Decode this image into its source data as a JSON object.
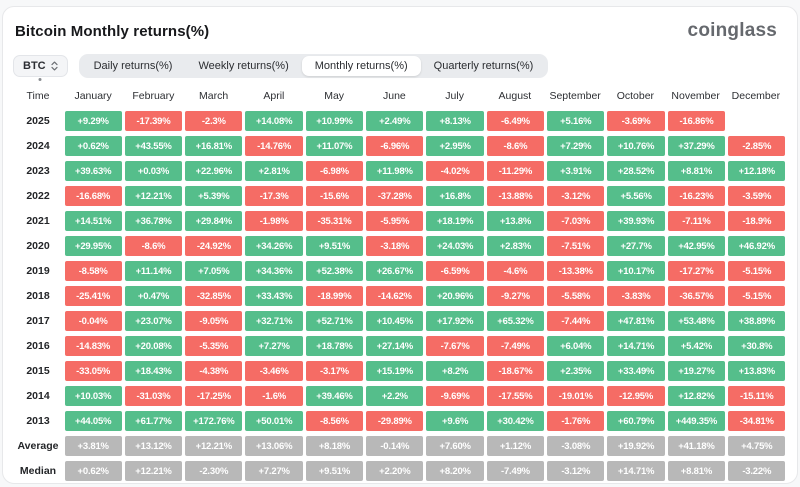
{
  "header": {
    "title": "Bitcoin Monthly returns(%)",
    "brand": "coinglass"
  },
  "controls": {
    "symbol": "BTC",
    "symbol_sort_icon": "chevron-up-down-icon",
    "tabs": [
      {
        "label": "Daily returns(%)",
        "active": false
      },
      {
        "label": "Weekly returns(%)",
        "active": false
      },
      {
        "label": "Monthly returns(%)",
        "active": true
      },
      {
        "label": "Quarterly returns(%)",
        "active": false
      }
    ]
  },
  "colors": {
    "positive": "#55be8b",
    "negative": "#f56c65",
    "summary": "#b8b8b8"
  },
  "table": {
    "time_header": "Time",
    "months": [
      "January",
      "February",
      "March",
      "April",
      "May",
      "June",
      "July",
      "August",
      "September",
      "October",
      "November",
      "December"
    ],
    "rows": [
      {
        "label": "2025",
        "type": "year",
        "cells": [
          "+9.29%",
          "-17.39%",
          "-2.3%",
          "+14.08%",
          "+10.99%",
          "+2.49%",
          "+8.13%",
          "-6.49%",
          "+5.16%",
          "-3.69%",
          "-16.86%",
          null
        ]
      },
      {
        "label": "2024",
        "type": "year",
        "cells": [
          "+0.62%",
          "+43.55%",
          "+16.81%",
          "-14.76%",
          "+11.07%",
          "-6.96%",
          "+2.95%",
          "-8.6%",
          "+7.29%",
          "+10.76%",
          "+37.29%",
          "-2.85%"
        ]
      },
      {
        "label": "2023",
        "type": "year",
        "cells": [
          "+39.63%",
          "+0.03%",
          "+22.96%",
          "+2.81%",
          "-6.98%",
          "+11.98%",
          "-4.02%",
          "-11.29%",
          "+3.91%",
          "+28.52%",
          "+8.81%",
          "+12.18%"
        ]
      },
      {
        "label": "2022",
        "type": "year",
        "cells": [
          "-16.68%",
          "+12.21%",
          "+5.39%",
          "-17.3%",
          "-15.6%",
          "-37.28%",
          "+16.8%",
          "-13.88%",
          "-3.12%",
          "+5.56%",
          "-16.23%",
          "-3.59%"
        ]
      },
      {
        "label": "2021",
        "type": "year",
        "cells": [
          "+14.51%",
          "+36.78%",
          "+29.84%",
          "-1.98%",
          "-35.31%",
          "-5.95%",
          "+18.19%",
          "+13.8%",
          "-7.03%",
          "+39.93%",
          "-7.11%",
          "-18.9%"
        ]
      },
      {
        "label": "2020",
        "type": "year",
        "cells": [
          "+29.95%",
          "-8.6%",
          "-24.92%",
          "+34.26%",
          "+9.51%",
          "-3.18%",
          "+24.03%",
          "+2.83%",
          "-7.51%",
          "+27.7%",
          "+42.95%",
          "+46.92%"
        ]
      },
      {
        "label": "2019",
        "type": "year",
        "cells": [
          "-8.58%",
          "+11.14%",
          "+7.05%",
          "+34.36%",
          "+52.38%",
          "+26.67%",
          "-6.59%",
          "-4.6%",
          "-13.38%",
          "+10.17%",
          "-17.27%",
          "-5.15%"
        ]
      },
      {
        "label": "2018",
        "type": "year",
        "cells": [
          "-25.41%",
          "+0.47%",
          "-32.85%",
          "+33.43%",
          "-18.99%",
          "-14.62%",
          "+20.96%",
          "-9.27%",
          "-5.58%",
          "-3.83%",
          "-36.57%",
          "-5.15%"
        ]
      },
      {
        "label": "2017",
        "type": "year",
        "cells": [
          "-0.04%",
          "+23.07%",
          "-9.05%",
          "+32.71%",
          "+52.71%",
          "+10.45%",
          "+17.92%",
          "+65.32%",
          "-7.44%",
          "+47.81%",
          "+53.48%",
          "+38.89%"
        ]
      },
      {
        "label": "2016",
        "type": "year",
        "cells": [
          "-14.83%",
          "+20.08%",
          "-5.35%",
          "+7.27%",
          "+18.78%",
          "+27.14%",
          "-7.67%",
          "-7.49%",
          "+6.04%",
          "+14.71%",
          "+5.42%",
          "+30.8%"
        ]
      },
      {
        "label": "2015",
        "type": "year",
        "cells": [
          "-33.05%",
          "+18.43%",
          "-4.38%",
          "-3.46%",
          "-3.17%",
          "+15.19%",
          "+8.2%",
          "-18.67%",
          "+2.35%",
          "+33.49%",
          "+19.27%",
          "+13.83%"
        ]
      },
      {
        "label": "2014",
        "type": "year",
        "cells": [
          "+10.03%",
          "-31.03%",
          "-17.25%",
          "-1.6%",
          "+39.46%",
          "+2.2%",
          "-9.69%",
          "-17.55%",
          "-19.01%",
          "-12.95%",
          "+12.82%",
          "-15.11%"
        ]
      },
      {
        "label": "2013",
        "type": "year",
        "cells": [
          "+44.05%",
          "+61.77%",
          "+172.76%",
          "+50.01%",
          "-8.56%",
          "-29.89%",
          "+9.6%",
          "+30.42%",
          "-1.76%",
          "+60.79%",
          "+449.35%",
          "-34.81%"
        ]
      },
      {
        "label": "Average",
        "type": "summary",
        "cells": [
          "+3.81%",
          "+13.12%",
          "+12.21%",
          "+13.06%",
          "+8.18%",
          "-0.14%",
          "+7.60%",
          "+1.12%",
          "-3.08%",
          "+19.92%",
          "+41.18%",
          "+4.75%"
        ]
      },
      {
        "label": "Median",
        "type": "summary",
        "cells": [
          "+0.62%",
          "+12.21%",
          "-2.30%",
          "+7.27%",
          "+9.51%",
          "+2.20%",
          "+8.20%",
          "-7.49%",
          "-3.12%",
          "+14.71%",
          "+8.81%",
          "-3.22%"
        ]
      }
    ]
  }
}
